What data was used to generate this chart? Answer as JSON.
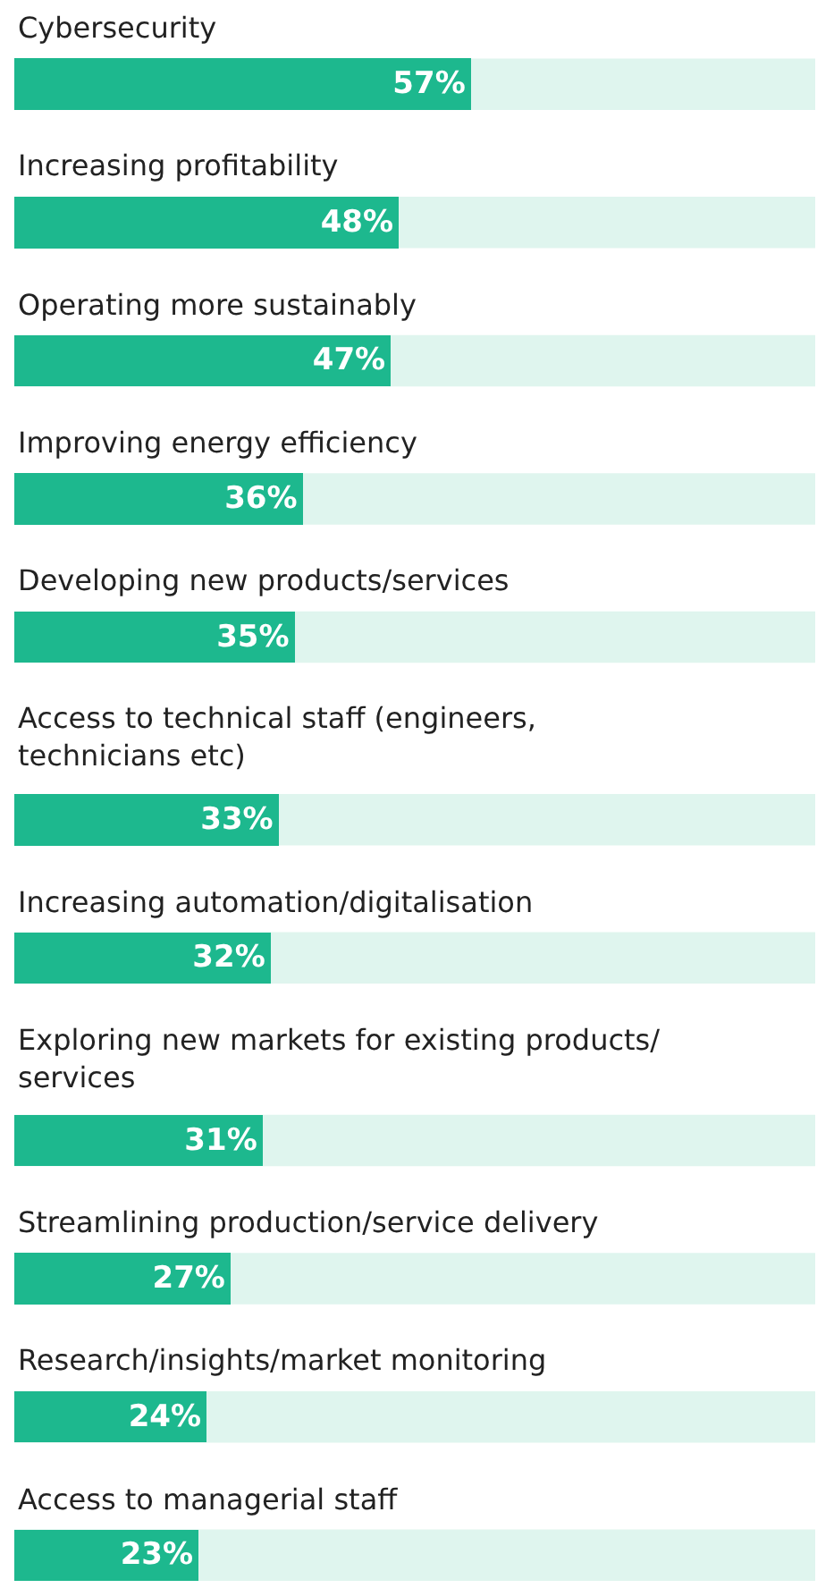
{
  "chart_data": {
    "type": "bar",
    "orientation": "horizontal",
    "categories": [
      "Cybersecurity",
      "Increasing profitability",
      "Operating more sustainably",
      "Improving energy efficiency",
      "Developing new products/services",
      "Access to technical staff (engineers, technicians etc)",
      "Increasing automation/digitalisation",
      "Exploring new markets for existing products/ services",
      "Streamlining production/service delivery",
      "Research/insights/market monitoring",
      "Access to managerial staff"
    ],
    "values": [
      57,
      48,
      47,
      36,
      35,
      33,
      32,
      31,
      27,
      24,
      23
    ],
    "value_labels": [
      "57%",
      "48%",
      "47%",
      "36%",
      "35%",
      "33%",
      "32%",
      "31%",
      "27%",
      "24%",
      "23%"
    ],
    "color": "#1db88e",
    "xlim": [
      0,
      100
    ],
    "grid": false,
    "legend": false
  }
}
